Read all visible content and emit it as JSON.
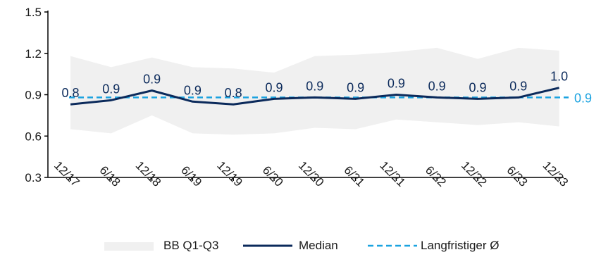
{
  "chart_data": {
    "type": "line",
    "x": [
      "12/17",
      "6/18",
      "12/18",
      "6/19",
      "12/19",
      "6/20",
      "12/20",
      "6/21",
      "12/21",
      "6/22",
      "12/22",
      "6/23",
      "12/23"
    ],
    "ylim": [
      0.3,
      1.5
    ],
    "yticks": [
      "0.3",
      "0.6",
      "0.9",
      "1.2",
      "1.5"
    ],
    "grid": false,
    "legend_position": "bottom",
    "series": [
      {
        "name": "BB Q1-Q3",
        "kind": "band",
        "low": [
          0.65,
          0.62,
          0.75,
          0.62,
          0.61,
          0.62,
          0.66,
          0.65,
          0.72,
          0.7,
          0.68,
          0.7,
          0.67
        ],
        "high": [
          1.18,
          1.1,
          1.17,
          1.1,
          1.09,
          1.06,
          1.18,
          1.19,
          1.21,
          1.24,
          1.16,
          1.24,
          1.22
        ],
        "color": "#f0f0f0"
      },
      {
        "name": "Median",
        "kind": "line",
        "values": [
          0.83,
          0.86,
          0.93,
          0.85,
          0.83,
          0.87,
          0.88,
          0.87,
          0.9,
          0.88,
          0.87,
          0.88,
          0.95
        ],
        "labels": [
          "0.8",
          "0.9",
          "0.9",
          "0.9",
          "0.8",
          "0.9",
          "0.9",
          "0.9",
          "0.9",
          "0.9",
          "0.9",
          "0.9",
          "1.0"
        ],
        "color": "#0b2a5b"
      },
      {
        "name": "Langfristiger Ø",
        "kind": "hline",
        "value": 0.88,
        "label": "0.9",
        "color": "#1ba3e0"
      }
    ]
  }
}
